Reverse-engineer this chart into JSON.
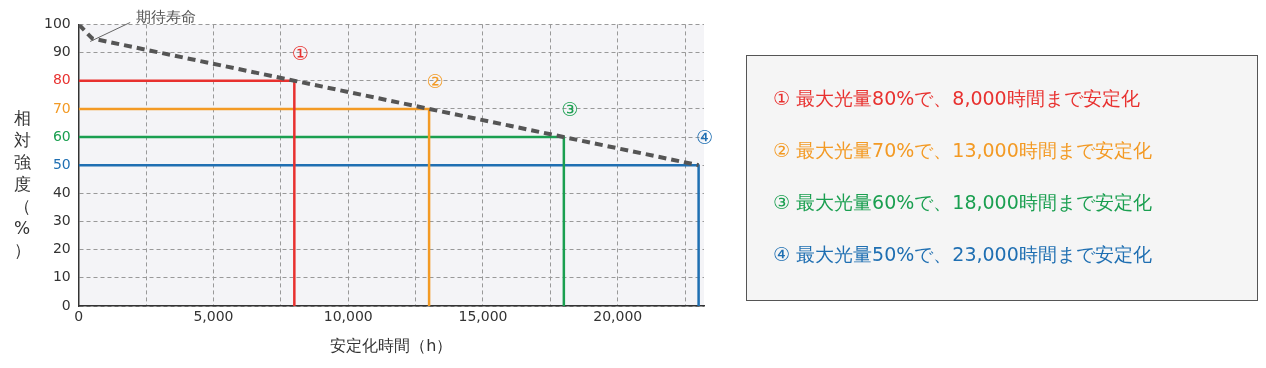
{
  "chart_data": {
    "type": "line",
    "xlabel": "安定化時間（h）",
    "ylabel": "相対強度（%）",
    "xlim": [
      0,
      23200
    ],
    "ylim": [
      0,
      100
    ],
    "xticks": [
      0,
      {
        "value": 2500,
        "label": null
      },
      {
        "value": 5000,
        "label": "5,000"
      },
      {
        "value": 7500,
        "label": null
      },
      {
        "value": 10000,
        "label": "10,000"
      },
      {
        "value": 12500,
        "label": null
      },
      {
        "value": 15000,
        "label": "15,000"
      },
      {
        "value": 17500,
        "label": null
      },
      {
        "value": 20000,
        "label": "20,000"
      },
      {
        "value": 22500,
        "label": null
      }
    ],
    "yticks": [
      0,
      10,
      20,
      30,
      40,
      50,
      60,
      70,
      80,
      90,
      100
    ],
    "grid": true,
    "legend": "right",
    "marker": "none",
    "series": [
      {
        "color": "#555555",
        "line_style": "dashed",
        "x": [
          0,
          500,
          23000
        ],
        "values": [
          100,
          95,
          50
        ]
      },
      {
        "name": "① 最大光量80%で、8,000時間まで安定化",
        "color": "#e8312f",
        "x": [
          0,
          8000,
          8000
        ],
        "values": [
          80,
          80,
          0
        ]
      },
      {
        "name": "② 最大光量70%で、13,000時間まで安定化",
        "color": "#f39a24",
        "x": [
          0,
          13000,
          13000
        ],
        "values": [
          70,
          70,
          0
        ]
      },
      {
        "name": "③ 最大光量60%で、18,000時間まで安定化",
        "color": "#1a9f50",
        "x": [
          0,
          18000,
          18000
        ],
        "values": [
          60,
          60,
          0
        ]
      },
      {
        "name": "④ 最大光量50%で、23,000時間まで安定化",
        "color": "#1f6fb2",
        "x": [
          0,
          23000,
          23000
        ],
        "values": [
          50,
          50,
          0
        ]
      }
    ],
    "annotations": [
      {
        "text": "期待寿命",
        "x": 500,
        "y": 95
      },
      "①",
      "②",
      "③",
      "④"
    ]
  }
}
